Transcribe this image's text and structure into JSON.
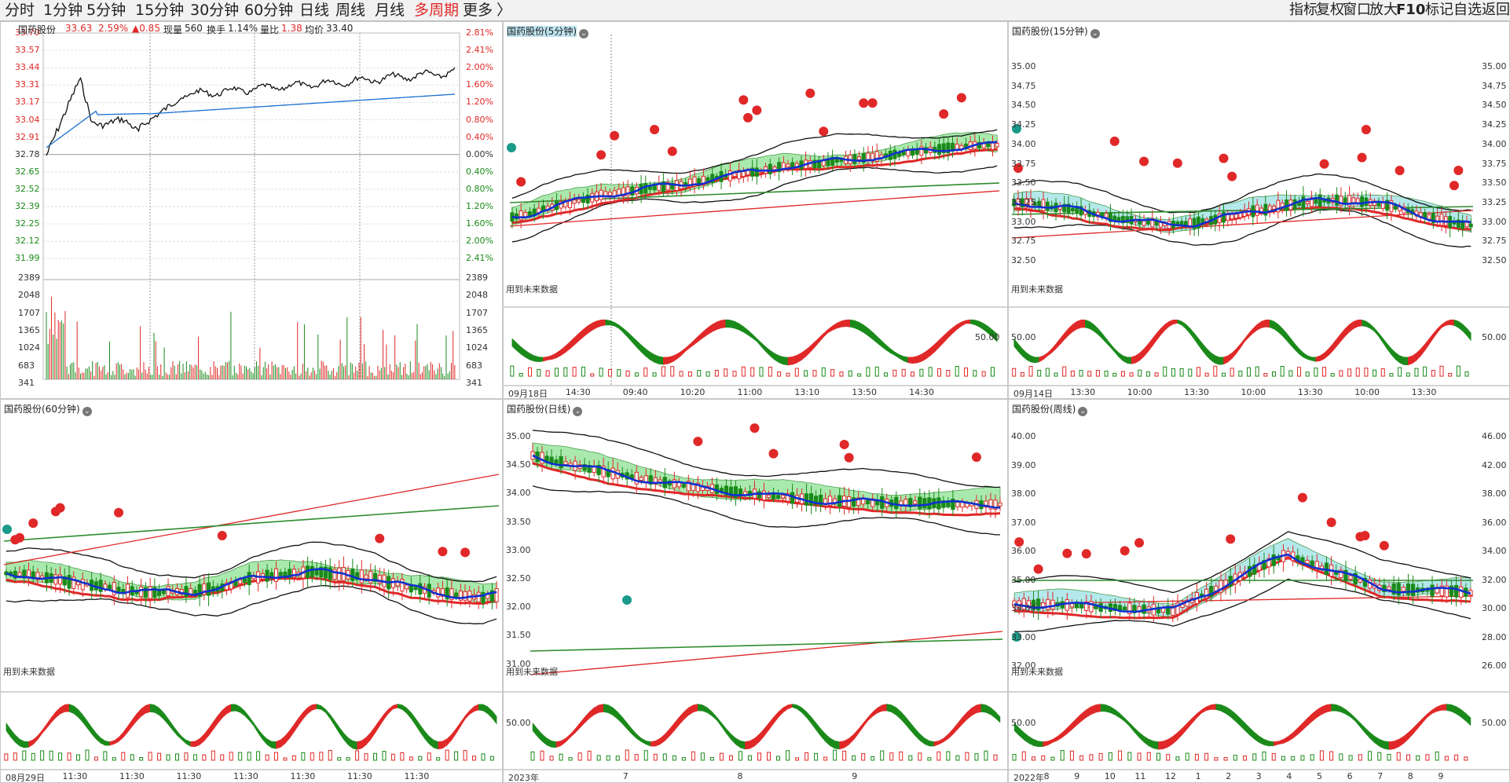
{
  "toolbar": {
    "periods": [
      "分时",
      "1分钟",
      "5分钟",
      "15分钟",
      "30分钟",
      "60分钟",
      "日线",
      "周线",
      "月线",
      "多周期",
      "更多"
    ],
    "more_arrow": "〉",
    "right_items": [
      "指标",
      "复权",
      "窗口",
      "放大",
      "F10",
      "标记",
      "自选",
      "返回"
    ]
  },
  "colors": {
    "up": "#e02828",
    "down": "#1a8a1a",
    "avg": "#1a6fd0",
    "bg": "#ffffff",
    "grid": "#dcdcdc"
  },
  "intraday": {
    "title": "国药股份",
    "price": "33.63",
    "pct": "2.59%",
    "change": "▲0.85",
    "vol_label": "现量",
    "vol": "560",
    "turn_label": "换手",
    "turn": "1.14%",
    "ratio_label": "量比",
    "ratio": "1.38",
    "avg_label": "均价",
    "avg": "33.40",
    "price_ticks": [
      "33.70",
      "33.57",
      "33.44",
      "33.31",
      "33.17",
      "33.04",
      "32.91",
      "32.78",
      "32.65",
      "32.52",
      "32.39",
      "32.25",
      "32.12",
      "31.99"
    ],
    "pct_ticks": [
      "2.81%",
      "2.41%",
      "2.00%",
      "1.60%",
      "1.20%",
      "0.80%",
      "0.40%",
      "0.00%",
      "0.40%",
      "0.80%",
      "1.20%",
      "1.60%",
      "2.00%",
      "2.41%"
    ],
    "vol_ticks": [
      "2389",
      "2048",
      "1707",
      "1365",
      "1024",
      "683",
      "341"
    ]
  },
  "panels": [
    {
      "title": "国药股份(5分钟)",
      "highlight": true,
      "future": "用到未来数据",
      "osc": "50.00",
      "xticks": [
        "09月18日",
        "14:30",
        "09:40",
        "10:20",
        "11:00",
        "13:10",
        "13:50",
        "14:30"
      ],
      "yticks": []
    },
    {
      "title": "国药股份(15分钟)",
      "highlight": false,
      "future": "用到未来数据",
      "osc": "50.00",
      "xticks": [
        "09月14日",
        "13:30",
        "10:00",
        "13:30",
        "10:00",
        "13:30",
        "10:00",
        "13:30"
      ],
      "yticks": [
        "35.00",
        "34.75",
        "34.50",
        "34.25",
        "34.00",
        "33.75",
        "33.50",
        "33.25",
        "33.00",
        "32.75",
        "32.50"
      ],
      "yticks_right": [
        "35.00",
        "34.75",
        "34.50",
        "34.25",
        "34.00",
        "33.75",
        "33.50",
        "33.25",
        "33.00",
        "32.75",
        "32.50"
      ],
      "osc_right": "50.00"
    },
    {
      "title": "国药股份(60分钟)",
      "highlight": false,
      "future": "用到未来数据",
      "osc": "",
      "xticks": [
        "08月29日",
        "11:30",
        "11:30",
        "11:30",
        "11:30",
        "11:30",
        "11:30",
        "11:30"
      ],
      "yticks": []
    },
    {
      "title": "国药股份(日线)",
      "highlight": false,
      "future": "用到未来数据",
      "osc": "50.00",
      "xticks": [
        "2023年",
        "7",
        "8",
        "9"
      ],
      "yticks": [
        "35.00",
        "34.50",
        "34.00",
        "33.50",
        "33.00",
        "32.50",
        "32.00",
        "31.50",
        "31.00"
      ]
    },
    {
      "title": "国药股份(周线)",
      "highlight": false,
      "future": "用到未来数据",
      "osc": "50.00",
      "xticks": [
        "2022年",
        "8",
        "9",
        "10",
        "11",
        "12",
        "1",
        "2",
        "3",
        "4",
        "5",
        "6",
        "7",
        "8",
        "9"
      ],
      "yticks": [
        "40.00",
        "39.00",
        "38.00",
        "37.00",
        "36.00",
        "35.00",
        "34.00",
        "33.00",
        "32.00"
      ],
      "yticks_right": [
        "46.00",
        "42.00",
        "38.00",
        "36.00",
        "34.00",
        "32.00",
        "30.00",
        "28.00",
        "26.00"
      ],
      "osc_right": "50.00"
    }
  ]
}
